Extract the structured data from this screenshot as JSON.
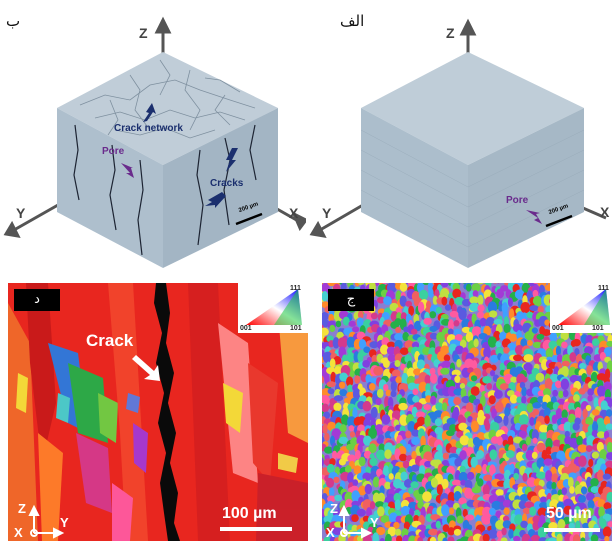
{
  "panels": {
    "b": {
      "label": "ب",
      "axes": {
        "z": "Z",
        "x": "X",
        "y": "Y"
      },
      "annotations": {
        "crack_network": "Crack network",
        "pore": "Pore",
        "cracks": "Cracks"
      },
      "scale": "200 µm"
    },
    "a": {
      "label": "الف",
      "axes": {
        "z": "Z",
        "x": "X",
        "y": "Y"
      },
      "annotations": {
        "pore": "Pore"
      },
      "scale": "200 µm"
    },
    "d": {
      "label": "د",
      "crack_label": "Crack",
      "scale": "100 µm",
      "legend": {
        "top": "111",
        "left": "001",
        "right": "101"
      },
      "axes": {
        "z": "Z",
        "x": "X",
        "y": "Y"
      }
    },
    "c": {
      "label": "ج",
      "scale": "50 µm",
      "legend": {
        "top": "111",
        "left": "001",
        "right": "101"
      },
      "axes": {
        "z": "Z",
        "x": "X",
        "y": "Y"
      }
    }
  },
  "colors": {
    "cube_top": "#bccbd6",
    "cube_left": "#a9bccb",
    "cube_right": "#9fb2c2",
    "annot_blue": "#1b2f6e",
    "annot_purple": "#6a2b8c",
    "ebsd_red": "#e8261f"
  }
}
